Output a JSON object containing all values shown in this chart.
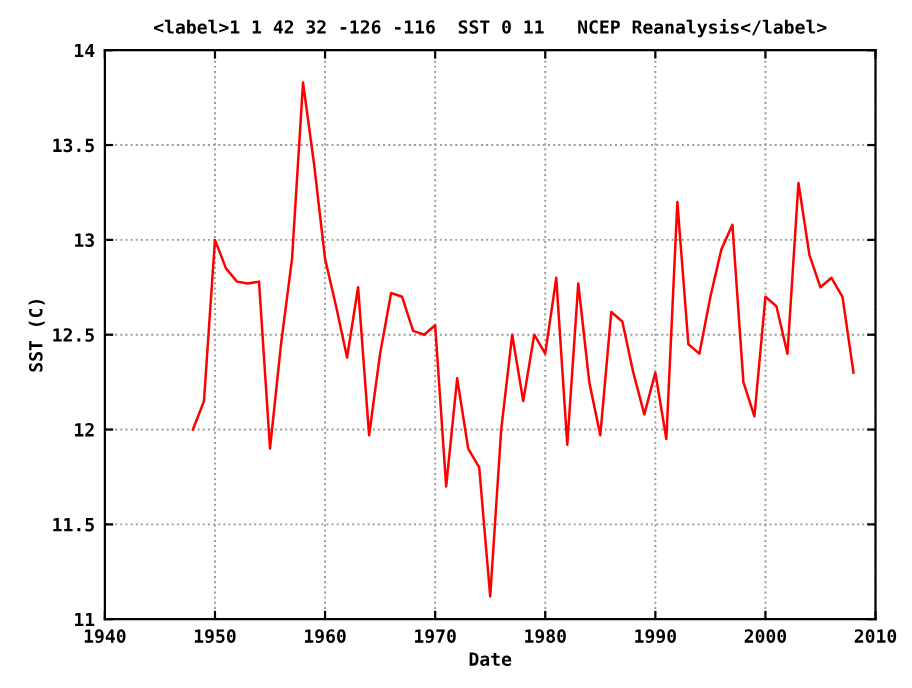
{
  "chart_data": {
    "type": "line",
    "title": "<label>1 1 42 32 -126 -116  SST 0 11   NCEP Reanalysis</label>",
    "xlabel": "Date",
    "ylabel": "SST (C)",
    "x": [
      1948,
      1949,
      1950,
      1951,
      1952,
      1953,
      1954,
      1955,
      1956,
      1957,
      1958,
      1959,
      1960,
      1961,
      1962,
      1963,
      1964,
      1965,
      1966,
      1967,
      1968,
      1969,
      1970,
      1971,
      1972,
      1973,
      1974,
      1975,
      1976,
      1977,
      1978,
      1979,
      1980,
      1981,
      1982,
      1983,
      1984,
      1985,
      1986,
      1987,
      1988,
      1989,
      1990,
      1991,
      1992,
      1993,
      1994,
      1995,
      1996,
      1997,
      1998,
      1999,
      2000,
      2001,
      2002,
      2003,
      2004,
      2005,
      2006,
      2007,
      2008
    ],
    "series": [
      {
        "color": "#ff0000",
        "values": [
          12.0,
          12.15,
          13.0,
          12.85,
          12.78,
          12.77,
          12.78,
          11.9,
          12.45,
          12.9,
          13.83,
          13.4,
          12.9,
          12.65,
          12.38,
          12.75,
          11.97,
          12.4,
          12.72,
          12.7,
          12.52,
          12.5,
          12.55,
          11.7,
          12.27,
          11.9,
          11.8,
          11.12,
          12.0,
          12.5,
          12.15,
          12.5,
          12.4,
          12.8,
          11.92,
          12.77,
          12.25,
          11.97,
          12.62,
          12.57,
          12.3,
          12.08,
          12.3,
          11.95,
          13.2,
          12.45,
          12.4,
          12.7,
          12.95,
          13.08,
          12.25,
          12.07,
          12.7,
          12.65,
          12.4,
          13.3,
          12.92,
          12.75,
          12.8,
          12.7,
          12.3
        ]
      }
    ],
    "xlim": [
      1940,
      2010
    ],
    "xticks": [
      1940,
      1950,
      1960,
      1970,
      1980,
      1990,
      2000,
      2010
    ],
    "ylim": [
      11,
      14
    ],
    "yticks": [
      11,
      {
        "value": 11.5,
        "label": "11.5"
      },
      12,
      {
        "value": 12.5,
        "label": "12.5"
      },
      13,
      {
        "value": 13.5,
        "label": "13.5"
      },
      14
    ],
    "grid": true,
    "line_style": "solid",
    "marker": "none"
  }
}
